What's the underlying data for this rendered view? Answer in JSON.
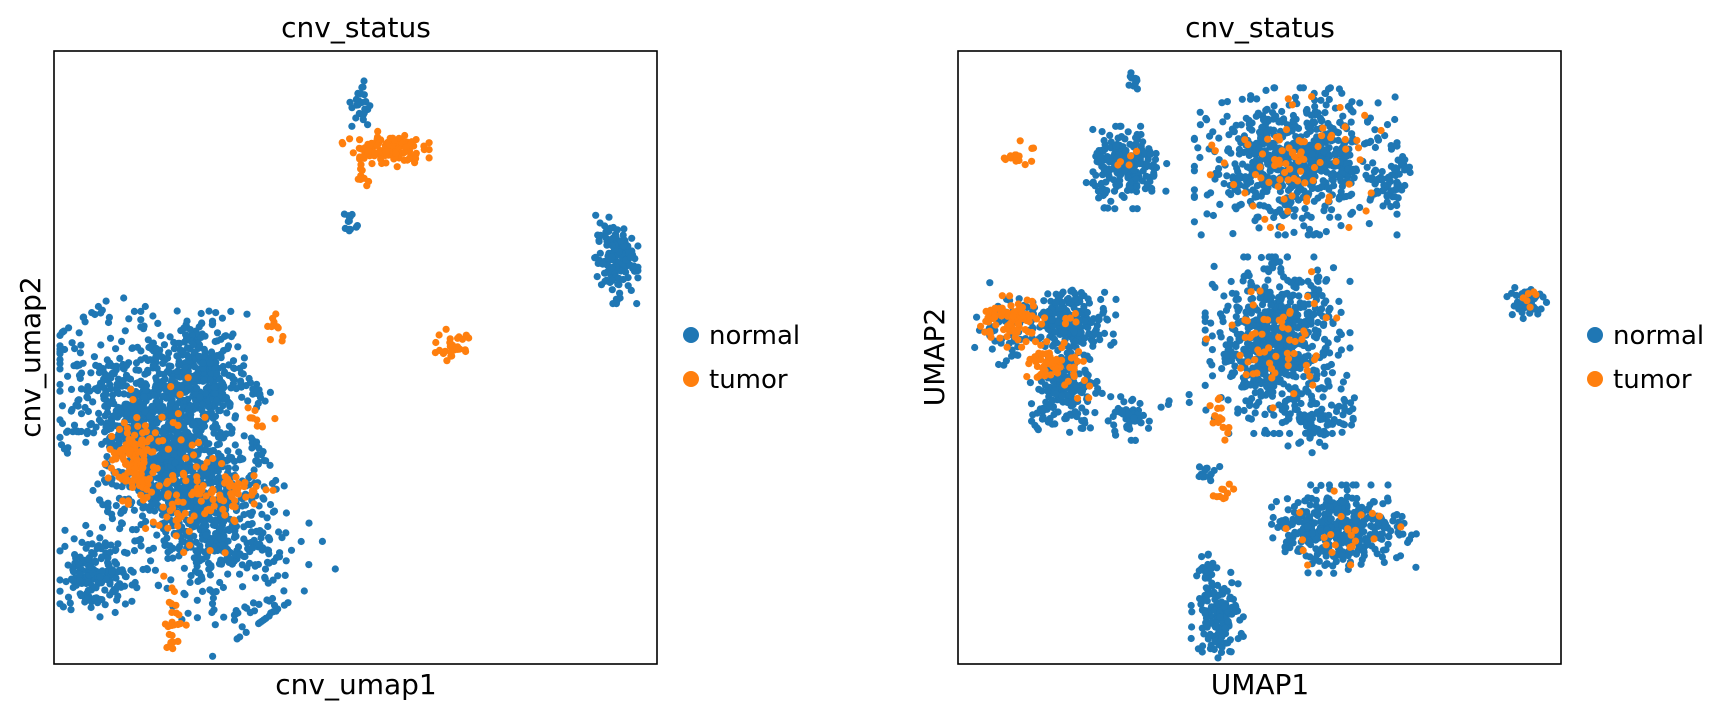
{
  "chart_data": [
    {
      "type": "scatter",
      "title": "cnv_status",
      "xlabel": "cnv_umap1",
      "ylabel": "cnv_umap2",
      "xlim": [
        0,
        100
      ],
      "ylim": [
        0,
        100
      ],
      "legend": {
        "placement": "right",
        "entries": [
          "normal",
          "tumor"
        ]
      },
      "colors": {
        "normal": "#1f77b4",
        "tumor": "#ff7f0e"
      },
      "series": [
        {
          "name": "normal",
          "clusters": [
            {
              "cx": 20,
              "cy": 32,
              "sx": 5.5,
              "sy": 12,
              "n": 1500,
              "rot": 35
            },
            {
              "cx": 24,
              "cy": 47,
              "sx": 4,
              "sy": 5,
              "n": 350,
              "rot": 0
            },
            {
              "cx": 7,
              "cy": 15,
              "sx": 3,
              "sy": 3,
              "n": 170,
              "rot": -20
            },
            {
              "cx": 34,
              "cy": 44,
              "sx": 1,
              "sy": 1,
              "n": 10,
              "rot": 0
            },
            {
              "cx": 51,
              "cy": 91,
              "sx": 0.8,
              "sy": 2,
              "n": 25,
              "rot": 0
            },
            {
              "cx": 49,
              "cy": 72,
              "sx": 0.7,
              "sy": 1.2,
              "n": 12,
              "rot": 0
            },
            {
              "cx": 93,
              "cy": 66,
              "sx": 1.6,
              "sy": 3,
              "n": 140,
              "rot": 0
            },
            {
              "cx": 34,
              "cy": 34,
              "sx": 0.8,
              "sy": 1,
              "n": 6,
              "rot": 0
            }
          ]
        },
        {
          "name": "tumor",
          "clusters": [
            {
              "cx": 13,
              "cy": 33,
              "sx": 2,
              "sy": 3,
              "n": 110,
              "rot": 0
            },
            {
              "cx": 20,
              "cy": 30,
              "sx": 3.5,
              "sy": 7,
              "n": 90,
              "rot": 0
            },
            {
              "cx": 28,
              "cy": 28,
              "sx": 2,
              "sy": 2.5,
              "n": 30,
              "rot": 30
            },
            {
              "cx": 33,
              "cy": 29,
              "sx": 2,
              "sy": 1.2,
              "n": 15,
              "rot": 0
            },
            {
              "cx": 34,
              "cy": 40,
              "sx": 1.5,
              "sy": 1,
              "n": 10,
              "rot": 0
            },
            {
              "cx": 20,
              "cy": 7,
              "sx": 0.8,
              "sy": 2.5,
              "n": 25,
              "rot": 0
            },
            {
              "cx": 55,
              "cy": 84,
              "sx": 3,
              "sy": 1.2,
              "n": 120,
              "rot": 0
            },
            {
              "cx": 51,
              "cy": 79,
              "sx": 0.8,
              "sy": 1.5,
              "n": 8,
              "rot": 0
            },
            {
              "cx": 66,
              "cy": 52,
              "sx": 1.2,
              "sy": 1.5,
              "n": 30,
              "rot": 40
            },
            {
              "cx": 37,
              "cy": 54,
              "sx": 1,
              "sy": 1.5,
              "n": 10,
              "rot": 0
            }
          ]
        }
      ]
    },
    {
      "type": "scatter",
      "title": "cnv_status",
      "xlabel": "UMAP1",
      "ylabel": "UMAP2",
      "xlim": [
        0,
        100
      ],
      "ylim": [
        0,
        100
      ],
      "legend": {
        "placement": "right",
        "entries": [
          "normal",
          "tumor"
        ]
      },
      "colors": {
        "normal": "#1f77b4",
        "tumor": "#ff7f0e"
      },
      "series": [
        {
          "name": "normal",
          "clusters": [
            {
              "cx": 28,
              "cy": 81,
              "sx": 2.8,
              "sy": 2.8,
              "n": 220,
              "rot": 0
            },
            {
              "cx": 29,
              "cy": 95,
              "sx": 0.8,
              "sy": 0.6,
              "n": 12,
              "rot": 0
            },
            {
              "cx": 56,
              "cy": 82,
              "sx": 7,
              "sy": 5,
              "n": 700,
              "rot": 0
            },
            {
              "cx": 71,
              "cy": 78,
              "sx": 1.5,
              "sy": 1.5,
              "n": 40,
              "rot": 0
            },
            {
              "cx": 74,
              "cy": 82,
              "sx": 1,
              "sy": 1,
              "n": 10,
              "rot": 0
            },
            {
              "cx": 19,
              "cy": 56,
              "sx": 3,
              "sy": 2.5,
              "n": 200,
              "rot": 0
            },
            {
              "cx": 18,
              "cy": 45,
              "sx": 2.5,
              "sy": 3,
              "n": 150,
              "rot": 0
            },
            {
              "cx": 9,
              "cy": 55,
              "sx": 3,
              "sy": 3,
              "n": 80,
              "rot": 0
            },
            {
              "cx": 14,
              "cy": 40,
              "sx": 1.5,
              "sy": 1,
              "n": 15,
              "rot": 0
            },
            {
              "cx": 28,
              "cy": 40,
              "sx": 1.8,
              "sy": 1.5,
              "n": 50,
              "rot": 0
            },
            {
              "cx": 53,
              "cy": 52,
              "sx": 5,
              "sy": 6,
              "n": 700,
              "rot": 0
            },
            {
              "cx": 59,
              "cy": 39,
              "sx": 2,
              "sy": 2,
              "n": 60,
              "rot": 0
            },
            {
              "cx": 65,
              "cy": 40,
              "sx": 1,
              "sy": 2,
              "n": 15,
              "rot": 0
            },
            {
              "cx": 37,
              "cy": 43,
              "sx": 2,
              "sy": 0.6,
              "n": 5,
              "rot": 0
            },
            {
              "cx": 64,
              "cy": 22,
              "sx": 5,
              "sy": 3,
              "n": 350,
              "rot": 0
            },
            {
              "cx": 57,
              "cy": 22,
              "sx": 2,
              "sy": 1.5,
              "n": 40,
              "rot": 0
            },
            {
              "cx": 43,
              "cy": 8,
              "sx": 1.8,
              "sy": 3,
              "n": 140,
              "rot": 0
            },
            {
              "cx": 41,
              "cy": 16,
              "sx": 0.8,
              "sy": 1.2,
              "n": 20,
              "rot": 0
            },
            {
              "cx": 41,
              "cy": 31,
              "sx": 1,
              "sy": 1,
              "n": 15,
              "rot": 0
            },
            {
              "cx": 94,
              "cy": 59,
              "sx": 1.5,
              "sy": 1.5,
              "n": 50,
              "rot": 0
            }
          ]
        },
        {
          "name": "tumor",
          "clusters": [
            {
              "cx": 9,
              "cy": 56,
              "sx": 2.5,
              "sy": 1.8,
              "n": 80,
              "rot": 0
            },
            {
              "cx": 16,
              "cy": 49,
              "sx": 2,
              "sy": 1.5,
              "n": 60,
              "rot": 0
            },
            {
              "cx": 10,
              "cy": 83,
              "sx": 1.2,
              "sy": 1,
              "n": 15,
              "rot": 0
            },
            {
              "cx": 56,
              "cy": 82,
              "sx": 6,
              "sy": 4.5,
              "n": 80,
              "rot": 0
            },
            {
              "cx": 52,
              "cy": 52,
              "sx": 4.5,
              "sy": 5,
              "n": 60,
              "rot": 0
            },
            {
              "cx": 43,
              "cy": 40,
              "sx": 1.5,
              "sy": 1.5,
              "n": 15,
              "rot": 0
            },
            {
              "cx": 44,
              "cy": 28,
              "sx": 1,
              "sy": 1.5,
              "n": 10,
              "rot": 0
            },
            {
              "cx": 64,
              "cy": 21,
              "sx": 4,
              "sy": 3,
              "n": 25,
              "rot": 0
            },
            {
              "cx": 28,
              "cy": 82,
              "sx": 1.5,
              "sy": 1.5,
              "n": 5,
              "rot": 0
            },
            {
              "cx": 94,
              "cy": 59,
              "sx": 1,
              "sy": 1,
              "n": 6,
              "rot": 0
            },
            {
              "cx": 19,
              "cy": 56,
              "sx": 1,
              "sy": 1,
              "n": 5,
              "rot": 0
            },
            {
              "cx": 20,
              "cy": 45,
              "sx": 1.5,
              "sy": 1.5,
              "n": 6,
              "rot": 0
            }
          ]
        }
      ]
    }
  ]
}
